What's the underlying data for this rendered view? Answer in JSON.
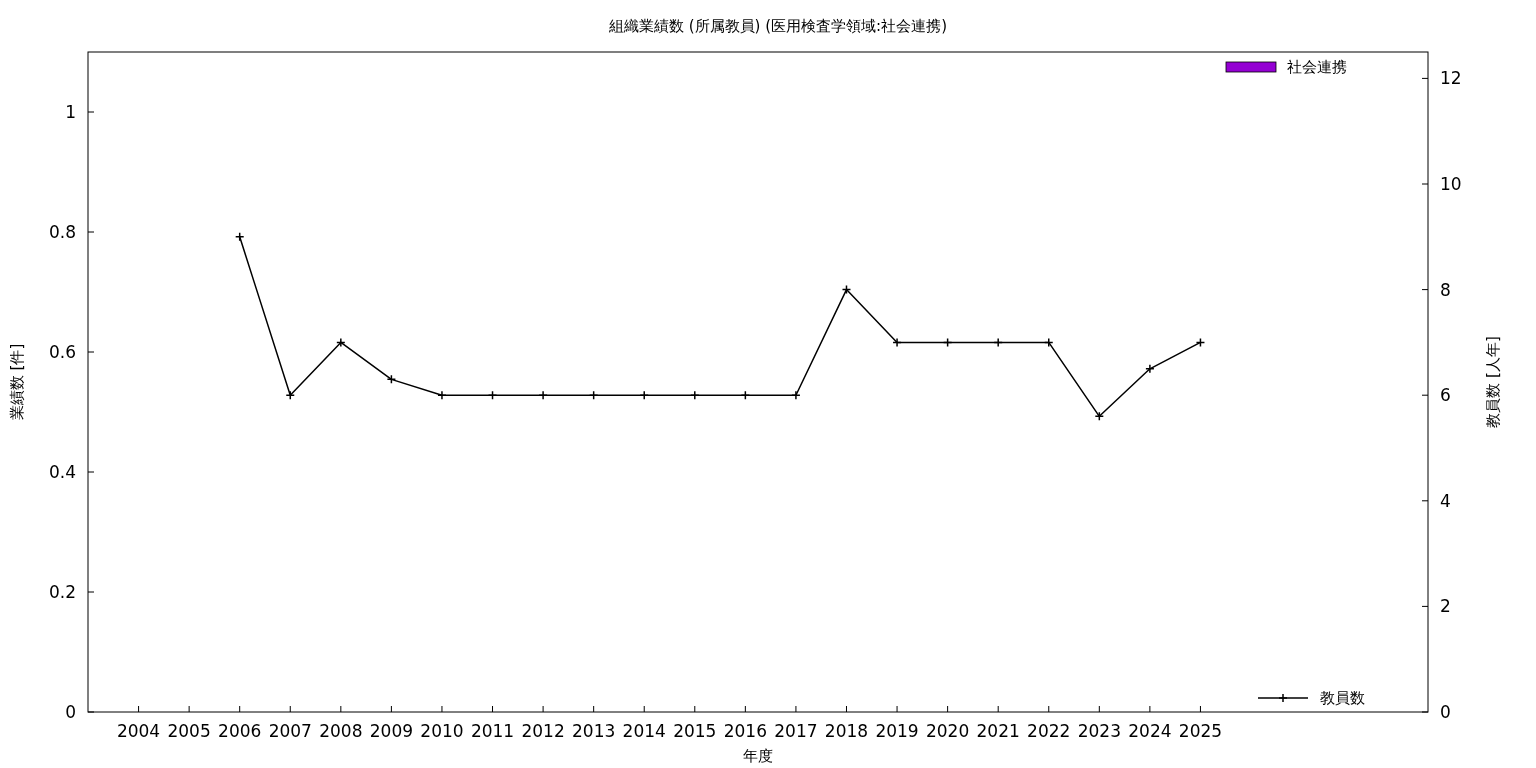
{
  "chart_data": {
    "type": "bar",
    "title": "組織業績数 (所属教員) (医用検査学領域:社会連携)",
    "xlabel": "年度",
    "ylabel": "業績数 [件]",
    "y2label": "教員数 [人年]",
    "xlim": [
      2003,
      2029.5
    ],
    "xticks": [
      2004,
      2005,
      2006,
      2007,
      2008,
      2009,
      2010,
      2011,
      2012,
      2013,
      2014,
      2015,
      2016,
      2017,
      2018,
      2019,
      2020,
      2021,
      2022,
      2023,
      2024,
      2025
    ],
    "ylim": [
      0,
      1.1
    ],
    "yticks": [
      0,
      0.2,
      0.4,
      0.6,
      0.8,
      1
    ],
    "y2lim": [
      0,
      12.5
    ],
    "y2ticks": [
      0,
      2,
      4,
      6,
      8,
      10,
      12
    ],
    "legend": "right",
    "grid": false,
    "series": [
      {
        "name": "社会連携",
        "color": "#9400d3",
        "values": [
          null,
          null,
          null,
          null,
          null,
          null,
          null,
          null,
          null,
          null,
          null,
          null,
          null,
          null,
          null,
          null,
          null,
          null,
          null,
          null,
          null,
          null
        ]
      },
      {
        "name": "教員数",
        "type": "line",
        "axis": "y2",
        "color": "#000000",
        "marker": "cross",
        "x": [
          2006,
          2007,
          2008,
          2009,
          2010,
          2011,
          2012,
          2013,
          2014,
          2015,
          2016,
          2017,
          2018,
          2019,
          2020,
          2021,
          2022,
          2023,
          2024,
          2025
        ],
        "values": [
          9,
          6,
          7,
          6.3,
          6,
          6,
          6,
          6,
          6,
          6,
          6,
          6,
          8,
          7,
          7,
          7,
          7,
          5.6,
          6.5,
          7
        ]
      }
    ]
  }
}
